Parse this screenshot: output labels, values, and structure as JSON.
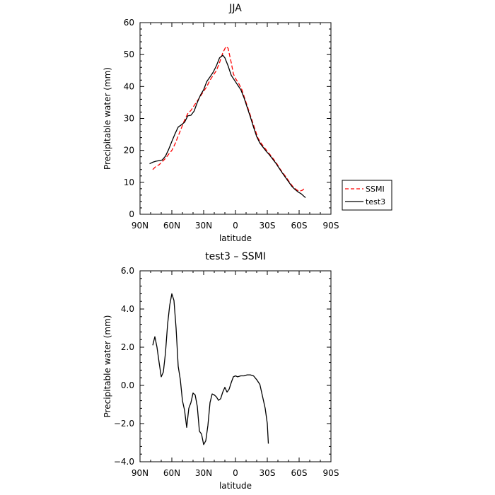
{
  "chart_data": [
    {
      "type": "line",
      "title": "JJA",
      "xlabel": "latitude",
      "ylabel": "Precipitable water (mm)",
      "xlim": [
        90,
        -90
      ],
      "ylim": [
        0,
        60
      ],
      "xticks": [
        {
          "value": 90,
          "label": "90N"
        },
        {
          "value": 60,
          "label": "60N"
        },
        {
          "value": 30,
          "label": "30N"
        },
        {
          "value": 0,
          "label": "0"
        },
        {
          "value": -30,
          "label": "30S"
        },
        {
          "value": -60,
          "label": "60S"
        },
        {
          "value": -90,
          "label": "90S"
        }
      ],
      "yticks": [
        0,
        10,
        20,
        30,
        40,
        50,
        60
      ],
      "grid": false,
      "legend_position": "right",
      "series": [
        {
          "name": "SSMI",
          "color": "#ff0000",
          "dash": "dashed",
          "points": [
            [
              78,
              14
            ],
            [
              75,
              15
            ],
            [
              72,
              15.5
            ],
            [
              69,
              16.5
            ],
            [
              66,
              17.5
            ],
            [
              63,
              18.8
            ],
            [
              60,
              20
            ],
            [
              57,
              22
            ],
            [
              54,
              24.5
            ],
            [
              51,
              27
            ],
            [
              48,
              29.5
            ],
            [
              45,
              31.5
            ],
            [
              42,
              32.5
            ],
            [
              39,
              34
            ],
            [
              36,
              35.5
            ],
            [
              33,
              37
            ],
            [
              30,
              38.5
            ],
            [
              27,
              40
            ],
            [
              24,
              42
            ],
            [
              21,
              43.5
            ],
            [
              18,
              45
            ],
            [
              15,
              47.5
            ],
            [
              12,
              50.5
            ],
            [
              9,
              52.5
            ],
            [
              7,
              52
            ],
            [
              4,
              47.5
            ],
            [
              2,
              44
            ],
            [
              0,
              42.5
            ],
            [
              -3,
              41
            ],
            [
              -6,
              39
            ],
            [
              -9,
              36
            ],
            [
              -12,
              33
            ],
            [
              -15,
              30
            ],
            [
              -18,
              27
            ],
            [
              -21,
              24
            ],
            [
              -24,
              22.3
            ],
            [
              -27,
              21
            ],
            [
              -30,
              19.7
            ],
            [
              -33,
              18.5
            ],
            [
              -36,
              17.2
            ],
            [
              -39,
              15.8
            ],
            [
              -42,
              14.2
            ],
            [
              -45,
              12.8
            ],
            [
              -48,
              11.5
            ],
            [
              -51,
              10
            ],
            [
              -54,
              8.7
            ],
            [
              -57,
              7.8
            ],
            [
              -60,
              7.2
            ],
            [
              -63,
              7.5
            ],
            [
              -66,
              8.4
            ]
          ]
        },
        {
          "name": "test3",
          "color": "#000000",
          "dash": "solid",
          "points": [
            [
              81,
              15.8
            ],
            [
              78,
              16.3
            ],
            [
              75,
              16.6
            ],
            [
              72,
              16.8
            ],
            [
              69,
              17
            ],
            [
              66,
              18.2
            ],
            [
              63,
              20.3
            ],
            [
              60,
              22.8
            ],
            [
              57,
              25.2
            ],
            [
              54,
              27.3
            ],
            [
              51,
              28
            ],
            [
              48,
              28.8
            ],
            [
              45,
              30.8
            ],
            [
              42,
              31
            ],
            [
              39,
              32.3
            ],
            [
              36,
              35
            ],
            [
              33,
              37.3
            ],
            [
              30,
              39
            ],
            [
              27,
              41.6
            ],
            [
              24,
              43
            ],
            [
              21,
              44.5
            ],
            [
              18,
              46.5
            ],
            [
              15,
              49
            ],
            [
              12,
              49.8
            ],
            [
              10,
              49
            ],
            [
              7,
              46.5
            ],
            [
              4,
              43.5
            ],
            [
              1,
              42
            ],
            [
              -2,
              40.5
            ],
            [
              -5,
              39
            ],
            [
              -8,
              36.5
            ],
            [
              -11,
              33.5
            ],
            [
              -14,
              30.5
            ],
            [
              -17,
              27.3
            ],
            [
              -20,
              24.3
            ],
            [
              -23,
              22.3
            ],
            [
              -26,
              21
            ],
            [
              -29,
              19.7
            ],
            [
              -32,
              18.6
            ],
            [
              -35,
              17.3
            ],
            [
              -38,
              16
            ],
            [
              -41,
              14.5
            ],
            [
              -44,
              13
            ],
            [
              -47,
              11.6
            ],
            [
              -50,
              10.2
            ],
            [
              -53,
              8.8
            ],
            [
              -56,
              7.8
            ],
            [
              -59,
              7
            ],
            [
              -62,
              6.4
            ],
            [
              -64,
              5.8
            ],
            [
              -66,
              5.2
            ]
          ]
        }
      ]
    },
    {
      "type": "line",
      "title": "test3 – SSMI",
      "xlabel": "latitude",
      "ylabel": "Precipitable water (mm)",
      "xlim": [
        90,
        -90
      ],
      "ylim": [
        -4,
        6
      ],
      "xticks": [
        {
          "value": 90,
          "label": "90N"
        },
        {
          "value": 60,
          "label": "60N"
        },
        {
          "value": 30,
          "label": "30N"
        },
        {
          "value": 0,
          "label": "0"
        },
        {
          "value": -30,
          "label": "30S"
        },
        {
          "value": -60,
          "label": "60S"
        },
        {
          "value": -90,
          "label": "90S"
        }
      ],
      "yticks": [
        {
          "value": -4,
          "label": "−4.0"
        },
        {
          "value": -2,
          "label": "−2.0"
        },
        {
          "value": 0,
          "label": "0.0"
        },
        {
          "value": 2,
          "label": "2.0"
        },
        {
          "value": 4,
          "label": "4.0"
        },
        {
          "value": 6,
          "label": "6.0"
        }
      ],
      "grid": false,
      "series": [
        {
          "color": "#000000",
          "dash": "solid",
          "points": [
            [
              78,
              2.1
            ],
            [
              76,
              2.55
            ],
            [
              74,
              2.0
            ],
            [
              72,
              1.2
            ],
            [
              70,
              0.45
            ],
            [
              68,
              0.7
            ],
            [
              66,
              1.7
            ],
            [
              64,
              3.2
            ],
            [
              62,
              4.2
            ],
            [
              60,
              4.8
            ],
            [
              58,
              4.45
            ],
            [
              56,
              3.0
            ],
            [
              54,
              1.0
            ],
            [
              52,
              0.3
            ],
            [
              50,
              -0.8
            ],
            [
              48,
              -1.3
            ],
            [
              46,
              -2.2
            ],
            [
              44,
              -1.2
            ],
            [
              42,
              -0.9
            ],
            [
              40,
              -0.4
            ],
            [
              38,
              -0.5
            ],
            [
              36,
              -1.1
            ],
            [
              34,
              -2.4
            ],
            [
              32,
              -2.55
            ],
            [
              30,
              -3.1
            ],
            [
              28,
              -2.9
            ],
            [
              26,
              -2.1
            ],
            [
              24,
              -0.9
            ],
            [
              22,
              -0.45
            ],
            [
              20,
              -0.5
            ],
            [
              18,
              -0.6
            ],
            [
              16,
              -0.78
            ],
            [
              14,
              -0.7
            ],
            [
              12,
              -0.35
            ],
            [
              10,
              -0.1
            ],
            [
              8,
              -0.35
            ],
            [
              6,
              -0.2
            ],
            [
              4,
              0.15
            ],
            [
              2,
              0.45
            ],
            [
              0,
              0.5
            ],
            [
              -2,
              0.45
            ],
            [
              -5,
              0.5
            ],
            [
              -8,
              0.5
            ],
            [
              -11,
              0.55
            ],
            [
              -14,
              0.55
            ],
            [
              -17,
              0.5
            ],
            [
              -20,
              0.3
            ],
            [
              -23,
              0.05
            ],
            [
              -26,
              -0.7
            ],
            [
              -28,
              -1.2
            ],
            [
              -30,
              -2.0
            ],
            [
              -31,
              -3.05
            ]
          ]
        }
      ]
    }
  ]
}
